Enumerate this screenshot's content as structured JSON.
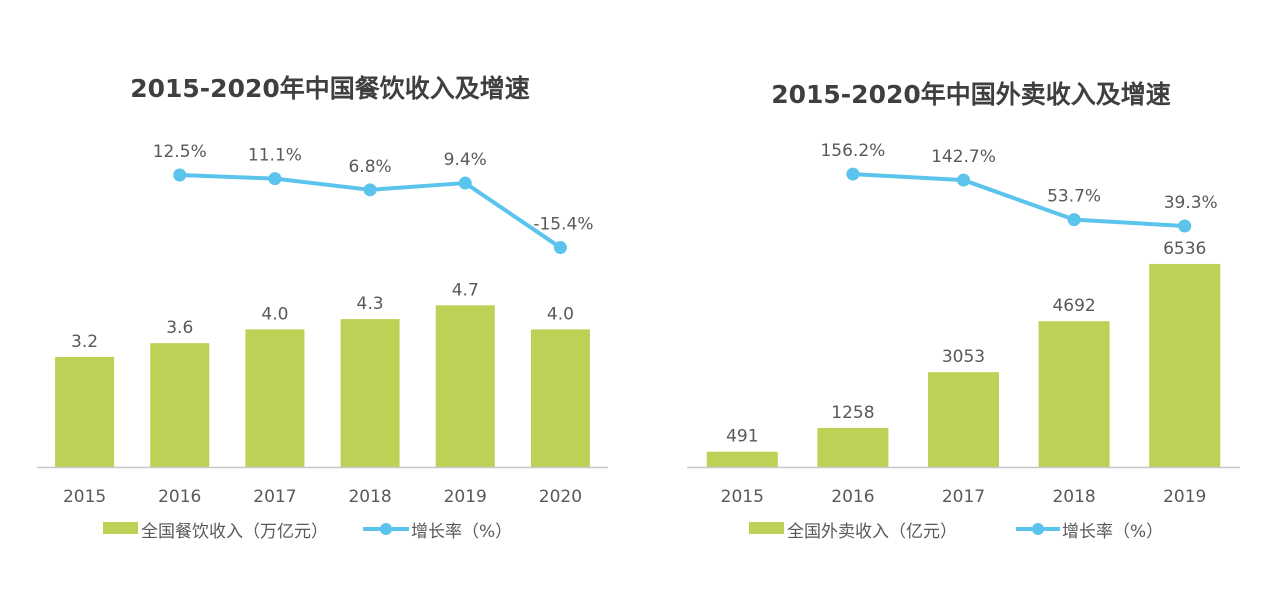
{
  "colors": {
    "bar": "#bcd155",
    "line": "#5bc4ec",
    "axis": "#c8c8c8",
    "text": "#595959",
    "title": "#3f3f3f"
  },
  "chart_data": [
    {
      "type": "bar+line",
      "title": "2015-2020年中国餐饮收入及增速",
      "categories": [
        "2015",
        "2016",
        "2017",
        "2018",
        "2019",
        "2020"
      ],
      "series": [
        {
          "name": "全国餐饮收入（万亿元）",
          "type": "bar",
          "axis": "primary",
          "values": [
            3.2,
            3.6,
            4.0,
            4.3,
            4.7,
            4.0
          ],
          "labels": [
            "3.2",
            "3.6",
            "4.0",
            "4.3",
            "4.7",
            "4.0"
          ]
        },
        {
          "name": "增长率（%）",
          "type": "line",
          "axis": "secondary",
          "values": [
            null,
            12.5,
            11.1,
            6.8,
            9.4,
            -15.4
          ],
          "labels": [
            "",
            "12.5%",
            "11.1%",
            "6.8%",
            "9.4%",
            "-15.4%"
          ]
        }
      ],
      "legend": {
        "position": "bottom",
        "items": [
          "全国餐饮收入（万亿元）",
          "增长率（%）"
        ]
      },
      "xlabel": "",
      "ylabel": "",
      "grid": false
    },
    {
      "type": "bar+line",
      "title": "2015-2020年中国外卖收入及增速",
      "categories": [
        "2015",
        "2016",
        "2017",
        "2018",
        "2019"
      ],
      "series": [
        {
          "name": "全国外卖收入（亿元）",
          "type": "bar",
          "axis": "primary",
          "values": [
            491,
            1258,
            3053,
            4692,
            6536
          ],
          "labels": [
            "491",
            "1258",
            "3053",
            "4692",
            "6536"
          ]
        },
        {
          "name": "增长率（%）",
          "type": "line",
          "axis": "secondary",
          "values": [
            null,
            156.2,
            142.7,
            53.7,
            39.3
          ],
          "labels": [
            "",
            "156.2%",
            "142.7%",
            "53.7%",
            "39.3%"
          ]
        }
      ],
      "legend": {
        "position": "bottom",
        "items": [
          "全国外卖收入（亿元）",
          "增长率（%）"
        ]
      },
      "xlabel": "",
      "ylabel": "",
      "grid": false
    }
  ]
}
